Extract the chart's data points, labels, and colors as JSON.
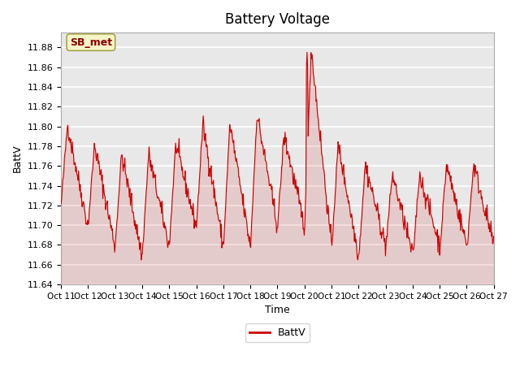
{
  "title": "Battery Voltage",
  "xlabel": "Time",
  "ylabel": "BattV",
  "legend_label": "BattV",
  "annotation_text": "SB_met",
  "line_color": "#cc0000",
  "plot_bg_color": "#e8e8e8",
  "ylim": [
    11.64,
    11.895
  ],
  "yticks": [
    11.64,
    11.66,
    11.68,
    11.7,
    11.72,
    11.74,
    11.76,
    11.78,
    11.8,
    11.82,
    11.84,
    11.86,
    11.88
  ],
  "x_tick_labels": [
    "Oct 11",
    "Oct 12",
    "Oct 13",
    "Oct 14",
    "Oct 15",
    "Oct 16",
    "Oct 17",
    "Oct 18",
    "Oct 19",
    "Oct 20",
    "Oct 21",
    "Oct 22",
    "Oct 23",
    "Oct 24",
    "Oct 25",
    "Oct 26",
    "Oct 27"
  ],
  "seed": 42
}
